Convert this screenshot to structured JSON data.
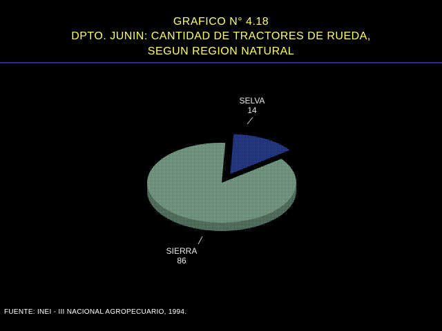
{
  "header": {
    "line1": "GRAFICO N° 4.18",
    "line2": "DPTO. JUNIN: CANTIDAD DE TRACTORES DE RUEDA,",
    "line3": "SEGUN REGION NATURAL"
  },
  "colors": {
    "title": "#ffff66",
    "rule": "#2a2a9a",
    "sierra": "#789c88",
    "sierra_side": "#5a7868",
    "selva": "#2a3c8a",
    "selva_side": "#1c2a66"
  },
  "chart_data": {
    "type": "pie",
    "title": "GRAFICO N° 4.18",
    "slices": [
      {
        "label": "SELVA",
        "value": 14,
        "value_label": "14"
      },
      {
        "label": "SIERRA",
        "value": 86,
        "value_label": "86"
      }
    ]
  },
  "footer": {
    "source": "FUENTE: INEI - III NACIONAL AGROPECUARIO, 1994."
  }
}
